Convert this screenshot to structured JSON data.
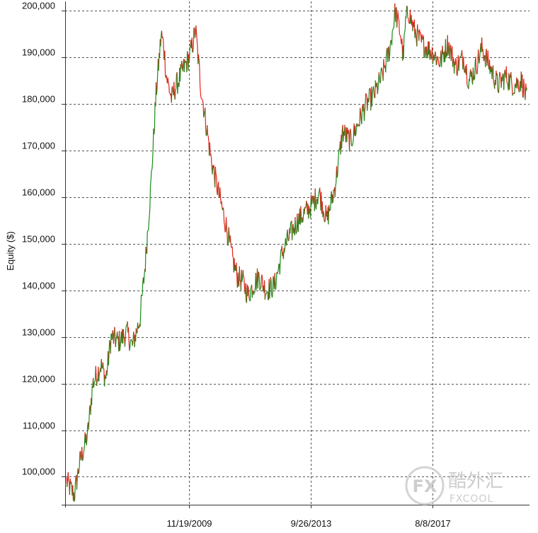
{
  "chart_data": {
    "type": "line",
    "ylabel": "Equity ($)",
    "ylim": [
      94000,
      202000
    ],
    "yticks": [
      100000,
      110000,
      120000,
      130000,
      140000,
      150000,
      160000,
      170000,
      180000,
      190000,
      200000
    ],
    "ytick_labels": [
      "100,000",
      "110,000",
      "120,000",
      "130,000",
      "140,000",
      "150,000",
      "160,000",
      "170,000",
      "180,000",
      "190,000",
      "200,000"
    ],
    "xtick_labels": [
      "11/19/2009",
      "9/26/2013",
      "8/8/2017"
    ],
    "xlim": [
      "2005-12-15",
      "2020-09-01"
    ],
    "xticks": [
      "2009-11-19",
      "2013-09-26",
      "2017-08-08"
    ],
    "grid": true,
    "colors": {
      "up": "#1a8c1a",
      "down": "#e8211b",
      "grid": "#555555"
    },
    "series": [
      {
        "x": [
          "2006-01-01",
          "2006-04-01",
          "2006-06-01",
          "2006-09-01",
          "2006-11-01",
          "2007-02-01",
          "2007-04-01",
          "2007-06-01",
          "2007-09-01",
          "2007-12-01",
          "2008-02-01",
          "2008-05-01",
          "2008-07-01",
          "2008-09-01",
          "2008-11-01",
          "2009-01-01",
          "2009-02-01",
          "2009-03-01",
          "2009-05-01",
          "2009-06-01",
          "2009-09-01",
          "2009-11-19",
          "2010-01-01",
          "2010-02-01",
          "2010-04-01",
          "2010-06-01",
          "2010-08-01",
          "2010-10-01",
          "2010-12-01",
          "2011-02-01",
          "2011-04-01",
          "2011-06-01",
          "2011-08-01",
          "2011-10-01",
          "2011-12-01",
          "2012-02-01",
          "2012-05-01",
          "2012-08-01",
          "2012-11-01",
          "2013-02-01",
          "2013-05-01",
          "2013-09-26",
          "2014-01-01",
          "2014-04-01",
          "2014-07-01",
          "2014-10-01",
          "2015-01-01",
          "2015-04-01",
          "2015-07-01",
          "2015-10-01",
          "2016-01-01",
          "2016-04-01",
          "2016-06-01",
          "2016-08-01",
          "2016-09-01",
          "2016-10-01",
          "2016-11-01",
          "2017-01-01",
          "2017-04-01",
          "2017-08-08",
          "2017-11-01",
          "2018-02-01",
          "2018-05-01",
          "2018-08-01",
          "2018-10-01",
          "2018-12-01",
          "2019-03-01",
          "2019-06-01",
          "2019-09-01",
          "2019-12-01",
          "2020-03-01",
          "2020-06-01",
          "2020-08-01"
        ],
        "y": [
          99000,
          96000,
          103000,
          109000,
          120000,
          124000,
          121000,
          130000,
          129000,
          131000,
          128000,
          134000,
          146000,
          162000,
          182000,
          195000,
          192000,
          186000,
          181000,
          183000,
          187000,
          190000,
          193000,
          196000,
          184000,
          176000,
          168000,
          163000,
          158000,
          153000,
          147000,
          143000,
          142000,
          139000,
          141000,
          143000,
          140000,
          141000,
          148000,
          152000,
          155000,
          158000,
          161000,
          155000,
          162000,
          174000,
          172000,
          176000,
          180000,
          182000,
          186000,
          192000,
          200000,
          195000,
          190000,
          198000,
          200000,
          196000,
          193000,
          191000,
          189000,
          193000,
          188000,
          190000,
          185000,
          187000,
          192000,
          188000,
          184000,
          186000,
          184000,
          185000,
          181000
        ]
      }
    ]
  },
  "watermark": {
    "text_cn": "酷外汇",
    "text_en": "FXCOOL",
    "logo": "FX"
  }
}
